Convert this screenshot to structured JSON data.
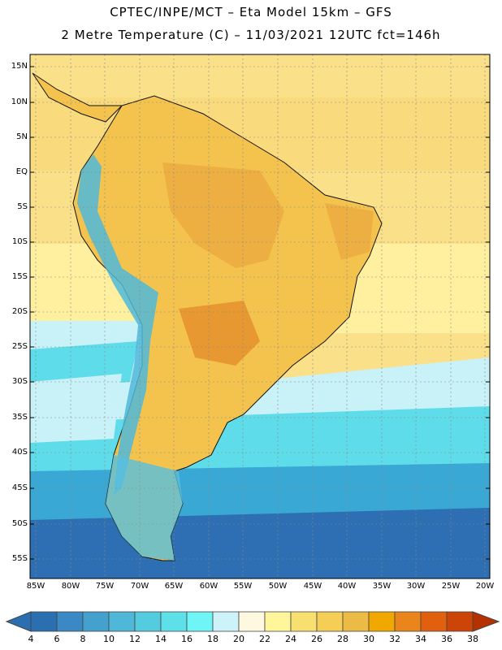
{
  "title_line1": "CPTEC/INPE/MCT –  Eta Model 15km – GFS",
  "title_line2": "2 Metre Temperature (C) – 11/03/2021 12UTC fct=146h",
  "lat_labels": [
    "15N",
    "10N",
    "5N",
    "EQ",
    "5S",
    "10S",
    "15S",
    "20S",
    "25S",
    "30S",
    "35S",
    "40S",
    "45S",
    "50S",
    "55S"
  ],
  "lon_labels": [
    "85W",
    "80W",
    "75W",
    "70W",
    "65W",
    "60W",
    "55W",
    "50W",
    "45W",
    "40W",
    "35W",
    "30W",
    "25W",
    "20W"
  ],
  "colorbar": {
    "values": [
      "4",
      "6",
      "8",
      "10",
      "12",
      "14",
      "16",
      "18",
      "20",
      "22",
      "24",
      "26",
      "28",
      "30",
      "32",
      "34",
      "36",
      "38"
    ],
    "colors": [
      "#2c6fb0",
      "#3a88c4",
      "#44a0cc",
      "#4fb7d8",
      "#55cbe0",
      "#5ee0e8",
      "#6ff5f5",
      "#ccf2fa",
      "#fff8e0",
      "#fff59a",
      "#f8e070",
      "#f4ce55",
      "#ecbb45",
      "#f0a800",
      "#e9851a",
      "#e06010",
      "#cc4406",
      "#b53200"
    ]
  },
  "map_colors": {
    "ocean_warm": "#fbe08a",
    "ocean_hot": "#f8d370",
    "ocean_mid": "#fff6a8",
    "ocean_cool": "#c9f1f8",
    "ocean_cold": "#5fdcea",
    "ocean_colder": "#3aa8d4",
    "ocean_coldest": "#2d6fb2",
    "land": "#f3c34e",
    "land_hot": "#e9a238",
    "land_hotter": "#e48a28",
    "andes": "#4fb8d9",
    "patagonia": "#58bfe0",
    "coast": "#111111"
  }
}
